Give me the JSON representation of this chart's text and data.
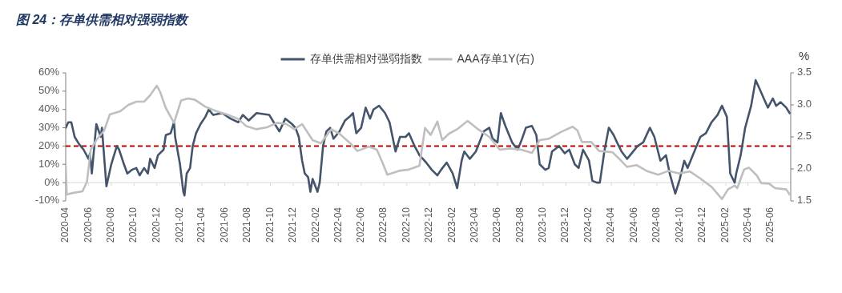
{
  "chart_data": {
    "type": "line",
    "title": "图 24：存单供需相对强弱指数",
    "y2label": "%",
    "xlim": [
      "2020-04-01",
      "2025-07-25"
    ],
    "xticks": [
      "2020-04",
      "2020-06",
      "2020-08",
      "2020-10",
      "2020-12",
      "2021-02",
      "2021-04",
      "2021-06",
      "2021-08",
      "2021-10",
      "2021-12",
      "2022-02",
      "2022-04",
      "2022-06",
      "2022-08",
      "2022-10",
      "2022-12",
      "2023-02",
      "2023-04",
      "2023-06",
      "2023-08",
      "2023-10",
      "2023-12",
      "2024-02",
      "2024-04",
      "2024-06",
      "2024-08",
      "2024-10",
      "2024-12",
      "2025-02",
      "2025-04",
      "2025-06"
    ],
    "ylim": [
      -10,
      60
    ],
    "yticks": [
      {
        "value": -10,
        "label": "-10%"
      },
      {
        "value": 0,
        "label": "0%"
      },
      {
        "value": 10,
        "label": "10%"
      },
      {
        "value": 20,
        "label": "20%"
      },
      {
        "value": 30,
        "label": "30%"
      },
      {
        "value": 40,
        "label": "40%"
      },
      {
        "value": 50,
        "label": "50%"
      },
      {
        "value": 60,
        "label": "60%"
      }
    ],
    "y2lim": [
      1.5,
      3.5
    ],
    "y2ticks": [
      1.5,
      {
        "value": 2,
        "label": "2.0"
      },
      2.5,
      {
        "value": 3,
        "label": "3.0"
      },
      3.5
    ],
    "legend": "top",
    "grid": false,
    "marker": "none",
    "line_style": "solid",
    "ref_lines": [
      {
        "axis": "y",
        "value": 20,
        "color": "#c00000",
        "line_style": "dashed"
      }
    ],
    "series": [
      {
        "name": "存单供需相对强弱指数",
        "color": "#44546a",
        "x": [
          "2020-04-01",
          "2020-04-08",
          "2020-04-16",
          "2020-04-25",
          "2020-05-07",
          "2020-05-19",
          "2020-06-01",
          "2020-06-05",
          "2020-06-10",
          "2020-06-22",
          "2020-07-04",
          "2020-07-07",
          "2020-07-19",
          "2020-08-01",
          "2020-08-16",
          "2020-08-22",
          "2020-09-04",
          "2020-09-13",
          "2020-09-25",
          "2020-10-07",
          "2020-10-16",
          "2020-10-28",
          "2020-11-07",
          "2020-11-13",
          "2020-11-25",
          "2020-12-04",
          "2020-12-19",
          "2020-12-25",
          "2021-01-07",
          "2021-01-16",
          "2021-01-19",
          "2021-02-01",
          "2021-02-10",
          "2021-02-13",
          "2021-02-19",
          "2021-02-28",
          "2021-03-07",
          "2021-03-16",
          "2021-03-28",
          "2021-04-10",
          "2021-04-19",
          "2021-05-01",
          "2021-05-25",
          "2021-06-16",
          "2021-07-07",
          "2021-07-19",
          "2021-08-04",
          "2021-08-25",
          "2021-09-28",
          "2021-10-10",
          "2021-10-25",
          "2021-11-10",
          "2021-11-28",
          "2021-12-07",
          "2021-12-16",
          "2021-12-25",
          "2022-01-01",
          "2022-01-10",
          "2022-01-16",
          "2022-01-22",
          "2022-02-04",
          "2022-02-10",
          "2022-02-19",
          "2022-02-28",
          "2022-03-10",
          "2022-03-19",
          "2022-04-04",
          "2022-04-19",
          "2022-05-01",
          "2022-05-10",
          "2022-05-19",
          "2022-06-01",
          "2022-06-13",
          "2022-06-25",
          "2022-07-04",
          "2022-07-19",
          "2022-08-04",
          "2022-08-16",
          "2022-09-01",
          "2022-09-13",
          "2022-09-28",
          "2022-10-07",
          "2022-10-22",
          "2022-11-04",
          "2022-11-13",
          "2022-11-22",
          "2022-12-07",
          "2022-12-22",
          "2023-01-01",
          "2023-01-16",
          "2023-02-01",
          "2023-02-13",
          "2023-02-25",
          "2023-03-04",
          "2023-03-19",
          "2023-04-04",
          "2023-04-25",
          "2023-05-10",
          "2023-05-19",
          "2023-06-01",
          "2023-06-10",
          "2023-06-22",
          "2023-07-10",
          "2023-07-25",
          "2023-08-04",
          "2023-08-16",
          "2023-09-01",
          "2023-09-13",
          "2023-09-22",
          "2023-10-07",
          "2023-10-16",
          "2023-10-25",
          "2023-11-13",
          "2023-11-28",
          "2023-12-10",
          "2023-12-25",
          "2024-01-04",
          "2024-01-16",
          "2024-02-01",
          "2024-02-10",
          "2024-02-22",
          "2024-03-01",
          "2024-03-13",
          "2024-03-25",
          "2024-04-07",
          "2024-04-16",
          "2024-04-28",
          "2024-05-13",
          "2024-05-25",
          "2024-06-10",
          "2024-06-25",
          "2024-07-13",
          "2024-07-25",
          "2024-08-10",
          "2024-08-25",
          "2024-09-04",
          "2024-09-19",
          "2024-10-01",
          "2024-10-13",
          "2024-10-22",
          "2024-11-07",
          "2024-11-25",
          "2024-12-10",
          "2024-12-25",
          "2025-01-10",
          "2025-01-22",
          "2025-02-04",
          "2025-02-13",
          "2025-02-25",
          "2025-03-01",
          "2025-03-13",
          "2025-03-25",
          "2025-04-10",
          "2025-04-22",
          "2025-05-01",
          "2025-05-16",
          "2025-05-25",
          "2025-06-07",
          "2025-06-16",
          "2025-06-28",
          "2025-07-13",
          "2025-07-22"
        ],
        "values": [
          30,
          33,
          33,
          25,
          21,
          18,
          13,
          16,
          5,
          32,
          25,
          30,
          -2,
          10,
          20,
          18,
          10,
          5,
          7,
          8,
          4,
          8,
          5,
          13,
          8,
          15,
          18,
          26,
          27,
          33,
          25,
          10,
          -5,
          -7,
          5,
          8,
          20,
          27,
          32,
          36,
          40,
          37,
          38,
          35,
          33,
          37,
          34,
          38,
          37,
          33,
          28,
          35,
          32,
          30,
          25,
          12,
          5,
          3,
          -5,
          2,
          -5,
          0,
          20,
          28,
          30,
          24,
          28,
          34,
          36,
          38,
          27,
          30,
          41,
          35,
          40,
          42,
          38,
          33,
          17,
          25,
          25,
          27,
          20,
          15,
          13,
          11,
          7,
          4,
          7,
          11,
          5,
          -3,
          12,
          17,
          13,
          17,
          28,
          30,
          24,
          22,
          38,
          31,
          22,
          18,
          23,
          30,
          31,
          26,
          10,
          7,
          8,
          17,
          20,
          16,
          18,
          10,
          8,
          18,
          12,
          1,
          0,
          0,
          17,
          30,
          26,
          22,
          17,
          13,
          16,
          20,
          22,
          30,
          25,
          12,
          15,
          5,
          -6,
          2,
          12,
          8,
          16,
          25,
          27,
          33,
          37,
          42,
          36,
          5,
          0,
          5,
          15,
          30,
          42,
          56,
          52,
          45,
          41,
          46,
          42,
          44,
          41,
          38
        ]
      },
      {
        "name": "AAA存单1Y(右)",
        "color": "#bfbfbf",
        "axis": "y2",
        "x": [
          "2020-04-01",
          "2020-04-04",
          "2020-04-16",
          "2020-05-16",
          "2020-05-28",
          "2020-06-07",
          "2020-06-22",
          "2020-07-13",
          "2020-07-28",
          "2020-08-25",
          "2020-09-16",
          "2020-10-07",
          "2020-10-28",
          "2020-11-13",
          "2020-12-01",
          "2020-12-10",
          "2020-12-25",
          "2021-01-16",
          "2021-02-04",
          "2021-02-22",
          "2021-03-13",
          "2021-04-10",
          "2021-05-10",
          "2021-06-07",
          "2021-07-07",
          "2021-07-28",
          "2021-08-25",
          "2021-09-22",
          "2021-10-19",
          "2021-11-13",
          "2021-12-04",
          "2021-12-25",
          "2022-01-22",
          "2022-02-13",
          "2022-03-13",
          "2022-04-04",
          "2022-05-01",
          "2022-05-22",
          "2022-06-22",
          "2022-07-13",
          "2022-07-28",
          "2022-08-10",
          "2022-09-10",
          "2022-10-07",
          "2022-11-04",
          "2022-11-19",
          "2022-12-04",
          "2022-12-22",
          "2023-01-04",
          "2023-01-22",
          "2023-02-13",
          "2023-03-13",
          "2023-04-10",
          "2023-05-10",
          "2023-06-07",
          "2023-07-04",
          "2023-08-04",
          "2023-09-01",
          "2023-09-22",
          "2023-10-16",
          "2023-11-19",
          "2023-12-19",
          "2024-01-01",
          "2024-01-13",
          "2024-02-07",
          "2024-02-28",
          "2024-04-04",
          "2024-04-25",
          "2024-05-13",
          "2024-06-07",
          "2024-07-04",
          "2024-08-04",
          "2024-09-01",
          "2024-09-28",
          "2024-10-28",
          "2024-11-25",
          "2024-12-25",
          "2025-01-22",
          "2025-02-07",
          "2025-02-25",
          "2025-03-04",
          "2025-03-22",
          "2025-04-04",
          "2025-04-25",
          "2025-05-07",
          "2025-05-28",
          "2025-06-13",
          "2025-07-13",
          "2025-07-22"
        ],
        "values": [
          2.05,
          1.6,
          1.62,
          1.65,
          1.8,
          2.3,
          2.45,
          2.6,
          2.85,
          2.9,
          3.0,
          3.05,
          3.05,
          3.15,
          3.3,
          3.2,
          2.95,
          2.72,
          3.07,
          3.1,
          3.08,
          2.97,
          2.9,
          2.85,
          2.78,
          2.67,
          2.62,
          2.65,
          2.72,
          2.7,
          2.62,
          2.7,
          2.45,
          2.4,
          2.62,
          2.55,
          2.41,
          2.28,
          2.35,
          2.3,
          2.1,
          1.91,
          1.97,
          1.99,
          2.05,
          2.64,
          2.53,
          2.74,
          2.45,
          2.55,
          2.62,
          2.75,
          2.62,
          2.5,
          2.3,
          2.32,
          2.3,
          2.25,
          2.45,
          2.47,
          2.58,
          2.66,
          2.6,
          2.42,
          2.42,
          2.28,
          2.26,
          2.14,
          2.03,
          2.06,
          1.97,
          1.91,
          1.97,
          1.93,
          1.96,
          1.85,
          1.72,
          1.53,
          1.68,
          1.74,
          1.7,
          1.99,
          2.02,
          1.9,
          1.78,
          1.77,
          1.7,
          1.68,
          1.6
        ]
      }
    ]
  }
}
